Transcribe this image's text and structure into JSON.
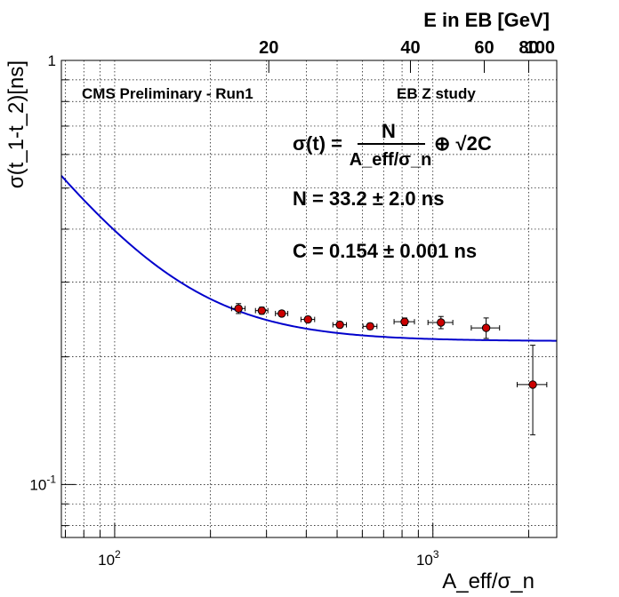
{
  "chart_data": {
    "type": "scatter",
    "title": "",
    "xlabel": "A_eff/σ_n",
    "ylabel": "σ(t_1-t_2)[ns]",
    "top_axis_label": "E in EB [GeV]",
    "xscale": "log",
    "yscale": "log",
    "xlim": [
      68,
      2450
    ],
    "ylim": [
      0.075,
      1.0
    ],
    "grid": true,
    "x_tick_labels": [
      {
        "value": 100,
        "base": "10",
        "exp": "2"
      },
      {
        "value": 1000,
        "base": "10",
        "exp": "3"
      }
    ],
    "y_tick_labels": [
      {
        "value": 0.1,
        "base": "10",
        "exp": "-1"
      },
      {
        "value": 1,
        "text": "1"
      }
    ],
    "top_axis_ticks": [
      {
        "label": "20",
        "x_value": 305
      },
      {
        "label": "40",
        "x_value": 850
      },
      {
        "label": "60",
        "x_value": 1450
      },
      {
        "label": "80",
        "x_value": 2000
      },
      {
        "label": "100",
        "x_value": 2480
      }
    ],
    "annotations": {
      "left": "CMS Preliminary - Run1",
      "right": "EB Z study",
      "formula_lhs": "σ(t) = ",
      "formula_num": "N",
      "formula_den": "A_eff/σ_n",
      "formula_rhs": "⊕  √2C",
      "n_result": "N = 33.2 ± 2.0 ns",
      "c_result": "C = 0.154 ± 0.001 ns"
    },
    "fit": {
      "N": 33.2,
      "C": 0.154,
      "color": "#0000cc"
    },
    "series": [
      {
        "marker_color": "#cc0000",
        "points": [
          {
            "x": 245,
            "y": 0.26,
            "xerr": 12,
            "yerr": 0.007
          },
          {
            "x": 290,
            "y": 0.257,
            "xerr": 13,
            "yerr": 0.005
          },
          {
            "x": 335,
            "y": 0.253,
            "xerr": 15,
            "yerr": 0.004
          },
          {
            "x": 405,
            "y": 0.245,
            "xerr": 20,
            "yerr": 0.004
          },
          {
            "x": 510,
            "y": 0.238,
            "xerr": 25,
            "yerr": 0.004
          },
          {
            "x": 635,
            "y": 0.236,
            "xerr": 32,
            "yerr": 0.004
          },
          {
            "x": 815,
            "y": 0.242,
            "xerr": 60,
            "yerr": 0.005
          },
          {
            "x": 1060,
            "y": 0.241,
            "xerr": 95,
            "yerr": 0.008
          },
          {
            "x": 1470,
            "y": 0.234,
            "xerr": 150,
            "yerr": 0.013
          },
          {
            "x": 2060,
            "y": 0.172,
            "xerr": 220,
            "yerr": 0.041
          }
        ]
      }
    ]
  }
}
